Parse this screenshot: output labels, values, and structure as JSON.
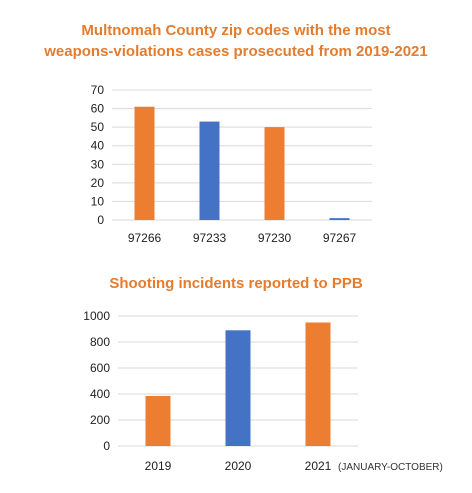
{
  "colors": {
    "orange": "#ed7d31",
    "blue": "#4472c4",
    "title": "#e47c2e",
    "grid": "#d9d9d9"
  },
  "chart_data": [
    {
      "type": "bar",
      "title_lines": [
        "Multnomah County zip codes with the most",
        "weapons-violations cases prosecuted from 2019-2021"
      ],
      "categories": [
        "97266",
        "97233",
        "97230",
        "97267"
      ],
      "values": [
        61,
        53,
        50,
        1
      ],
      "bar_colors": [
        "orange",
        "blue",
        "orange",
        "blue"
      ],
      "ylim": [
        0,
        70
      ],
      "yticks": [
        0,
        10,
        20,
        30,
        40,
        50,
        60,
        70
      ],
      "grid": true,
      "xlabel": "",
      "ylabel": ""
    },
    {
      "type": "bar",
      "title": "Shooting incidents reported to PPB",
      "categories": [
        "2019",
        "2020",
        "2021"
      ],
      "values": [
        385,
        890,
        950
      ],
      "bar_colors": [
        "orange",
        "blue",
        "orange"
      ],
      "ylim": [
        0,
        1000
      ],
      "yticks": [
        0,
        200,
        400,
        600,
        800,
        1000
      ],
      "grid": true,
      "annotation": "(JANUARY-OCTOBER)",
      "xlabel": "",
      "ylabel": ""
    }
  ]
}
